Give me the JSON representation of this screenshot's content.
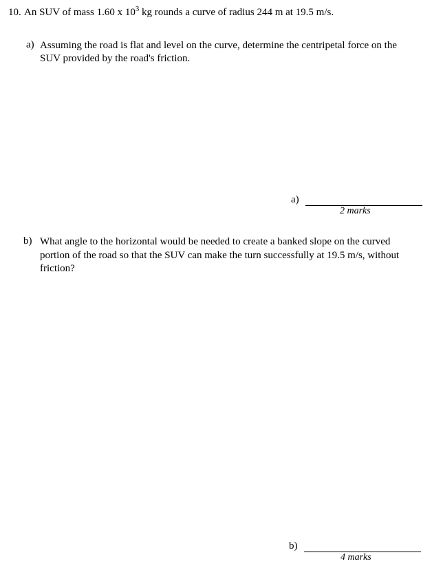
{
  "question": {
    "number": "10.",
    "stem_html": "An SUV of mass 1.60 x 10<sup>3</sup> kg rounds a curve of radius 244 m at 19.5 m/s."
  },
  "part_a": {
    "label": "a)",
    "text": "Assuming the road is flat and level on the curve, determine the centripetal force on the SUV provided by the road's friction.",
    "answer_label": "a)",
    "marks": "2 marks"
  },
  "part_b": {
    "label": "b)",
    "text": "What angle to the horizontal would be needed to create a banked slope on the curved portion of the road so that the SUV can make the turn successfully at 19.5 m/s, without friction?",
    "answer_label": "b)",
    "marks": "4 marks"
  }
}
